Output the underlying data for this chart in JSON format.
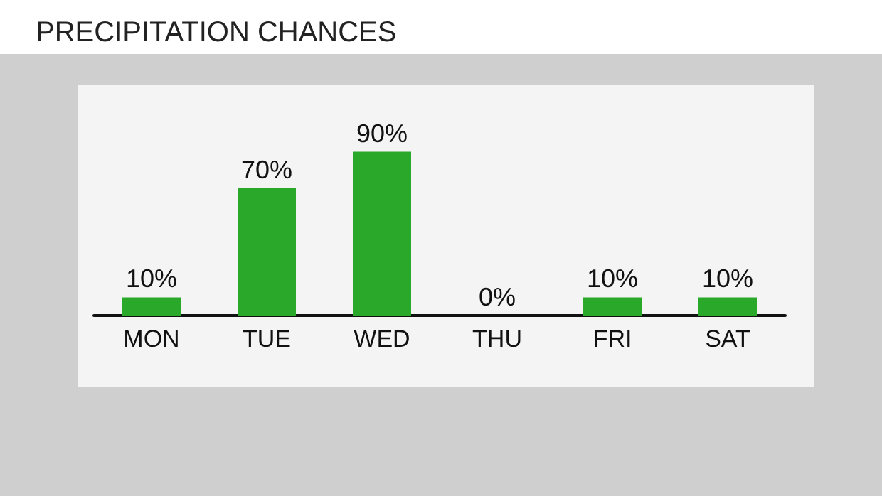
{
  "chart_data": {
    "type": "bar",
    "title": "PRECIPITATION CHANCES",
    "categories": [
      "MON",
      "TUE",
      "WED",
      "THU",
      "FRI",
      "SAT"
    ],
    "values": [
      10,
      70,
      90,
      0,
      10,
      10
    ],
    "value_labels": [
      "10%",
      "70%",
      "90%",
      "0%",
      "10%",
      "10%"
    ],
    "color": "#2aa82a",
    "tick_labels": "x"
  }
}
